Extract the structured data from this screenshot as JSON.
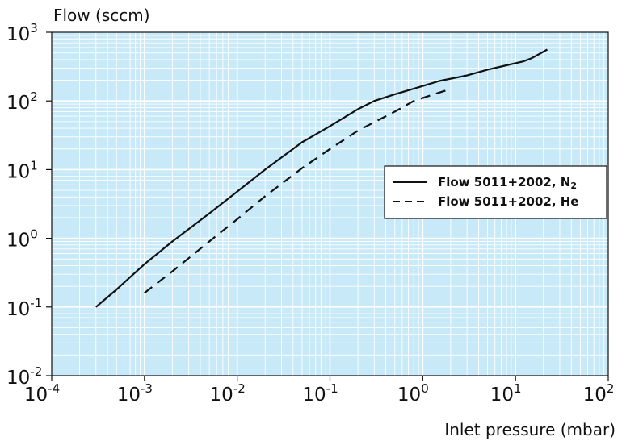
{
  "chart_data": {
    "type": "line",
    "ylabel": "Flow (sccm)",
    "xlabel": "Inlet pressure (mbar)",
    "x_scale": "log",
    "y_scale": "log",
    "xlim": [
      0.0001,
      100
    ],
    "ylim": [
      0.01,
      1000
    ],
    "x_ticks": [
      {
        "value": 0.0001,
        "base": "10",
        "exp": "-4"
      },
      {
        "value": 0.001,
        "base": "10",
        "exp": "-3"
      },
      {
        "value": 0.01,
        "base": "10",
        "exp": "-2"
      },
      {
        "value": 0.1,
        "base": "10",
        "exp": "-1"
      },
      {
        "value": 1,
        "base": "10",
        "exp": "0"
      },
      {
        "value": 10,
        "base": "10",
        "exp": "1"
      },
      {
        "value": 100,
        "base": "10",
        "exp": "2"
      }
    ],
    "y_ticks": [
      {
        "value": 0.01,
        "base": "10",
        "exp": "-2"
      },
      {
        "value": 0.1,
        "base": "10",
        "exp": "-1"
      },
      {
        "value": 1,
        "base": "10",
        "exp": "0"
      },
      {
        "value": 10,
        "base": "10",
        "exp": "1"
      },
      {
        "value": 100,
        "base": "10",
        "exp": "2"
      },
      {
        "value": 1000,
        "base": "10",
        "exp": "3"
      }
    ],
    "grid": true,
    "legend_position": "right",
    "colors": {
      "plot_background": "#c7e9f8",
      "grid": "#ffffff",
      "line": "#111111"
    },
    "series": [
      {
        "name": "Flow 5011+2002, N",
        "name_subscript": "2",
        "style": "solid",
        "x": [
          0.0003,
          0.0005,
          0.001,
          0.002,
          0.005,
          0.01,
          0.02,
          0.05,
          0.1,
          0.2,
          0.3,
          0.5,
          1,
          1.5,
          3,
          5,
          8,
          12,
          15,
          22
        ],
        "y": [
          0.1,
          0.18,
          0.42,
          0.9,
          2.3,
          4.8,
          10,
          25,
          43,
          76,
          100,
          125,
          165,
          195,
          235,
          285,
          330,
          375,
          420,
          560
        ]
      },
      {
        "name": "Flow 5011+2002, He",
        "name_subscript": "",
        "style": "dashed",
        "x": [
          0.001,
          0.002,
          0.005,
          0.01,
          0.02,
          0.05,
          0.1,
          0.2,
          0.5,
          0.8,
          1.2,
          1.8
        ],
        "y": [
          0.16,
          0.33,
          0.9,
          1.9,
          4.1,
          10.5,
          20,
          37,
          70,
          100,
          120,
          143
        ]
      }
    ]
  }
}
